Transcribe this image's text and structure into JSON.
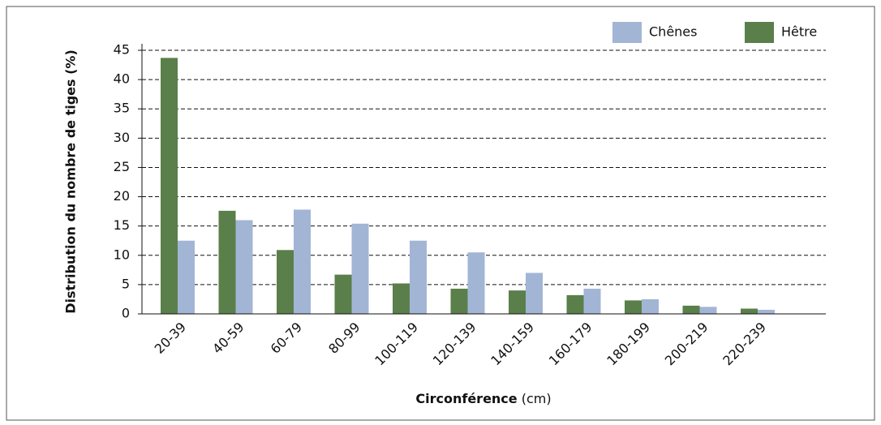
{
  "chart_data": {
    "type": "bar",
    "ylabel": "Distribution du nombre de tiges (%)",
    "xlabel": "Circonférence",
    "xlabel_unit": "(cm)",
    "categories": [
      "20-39",
      "40-59",
      "60-79",
      "80-99",
      "100-119",
      "120-139",
      "140-159",
      "160-179",
      "180-199",
      "200-219",
      "220-239"
    ],
    "series": [
      {
        "name": "Chênes",
        "color": "#a3b5d5",
        "values": [
          12.5,
          16.0,
          17.8,
          15.4,
          12.5,
          10.5,
          7.0,
          4.3,
          2.5,
          1.2,
          0.7
        ]
      },
      {
        "name": "Hêtre",
        "color": "#5a7f4a",
        "values": [
          43.7,
          17.6,
          10.9,
          6.7,
          5.2,
          4.3,
          4.0,
          3.2,
          2.3,
          1.4,
          0.9
        ]
      }
    ],
    "ylim": [
      0,
      45
    ],
    "yticks": [
      0,
      5,
      10,
      15,
      20,
      25,
      30,
      35,
      40,
      45
    ],
    "grid": true
  }
}
